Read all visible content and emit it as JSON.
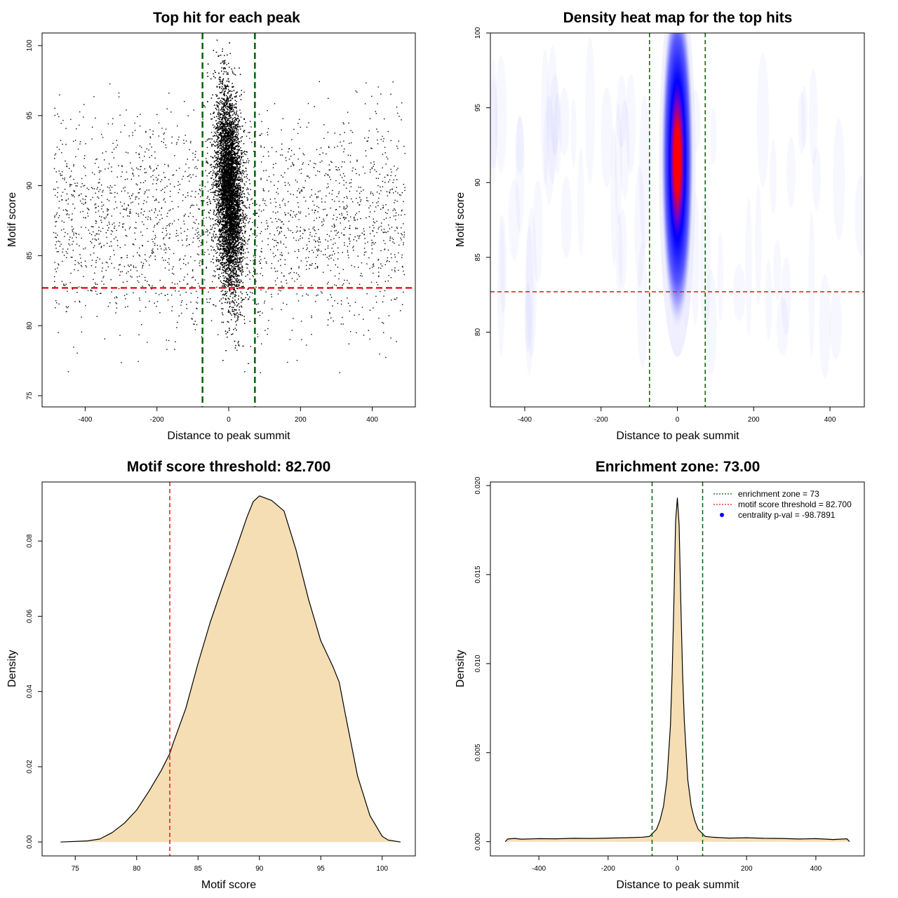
{
  "colors": {
    "zone_line": "#006400",
    "threshold_line": "#e8161b",
    "density_fill": "#f5deb3",
    "heat_low": "#ffffff",
    "heat_mid": "#0000ff",
    "heat_high": "#ff0000",
    "pval_marker": "#0000ff"
  },
  "chart_data": [
    {
      "type": "scatter",
      "title": "Top hit for each peak",
      "xlabel": "Distance to peak summit",
      "ylabel": "Motif score",
      "xlim": [
        -520,
        520
      ],
      "ylim": [
        74.2,
        100.9
      ],
      "xticks": [
        -400,
        -200,
        0,
        200,
        400
      ],
      "yticks": [
        75,
        80,
        85,
        90,
        95,
        100
      ],
      "xtick_labels": [
        "-400",
        "-200",
        "0",
        "200",
        "400"
      ],
      "ytick_labels": [
        "75",
        "80",
        "85",
        "90",
        "95",
        "100"
      ],
      "vlines": [
        -73,
        73
      ],
      "hline": 82.7,
      "points": {
        "background": {
          "count": 2400,
          "x_range": [
            -490,
            490
          ],
          "y_range": [
            76.5,
            97.5
          ],
          "y_center": 87.5
        },
        "central": {
          "count": 12000,
          "x_center": 0,
          "x_sd": 14,
          "y_center": 89.5,
          "y_sd": 3.6
        }
      }
    },
    {
      "type": "heatmap",
      "title": "Density heat map for the top hits",
      "xlabel": "Distance to peak summit",
      "ylabel": "Motif score",
      "xlim": [
        -490,
        490
      ],
      "ylim": [
        75,
        100
      ],
      "xticks": [
        -400,
        -200,
        0,
        200,
        400
      ],
      "yticks": [
        80,
        85,
        90,
        95,
        100
      ],
      "xtick_labels": [
        "-400",
        "-200",
        "0",
        "200",
        "400"
      ],
      "ytick_labels": [
        "80",
        "85",
        "90",
        "95",
        "100"
      ],
      "vlines": [
        -73,
        73
      ],
      "hline": 82.7,
      "hotspot": {
        "x": 0,
        "y": 91.5,
        "x_sd": 9,
        "y_sd": 4.2
      }
    },
    {
      "type": "area",
      "title": "Motif score threshold: 82.700",
      "xlabel": "Motif score",
      "ylabel": "Density",
      "xlim": [
        72.3,
        102.7
      ],
      "ylim": [
        -0.0037,
        0.0957
      ],
      "xticks": [
        75,
        80,
        85,
        90,
        95,
        100
      ],
      "yticks": [
        0.0,
        0.02,
        0.04,
        0.06,
        0.08
      ],
      "xtick_labels": [
        "75",
        "80",
        "85",
        "90",
        "95",
        "100"
      ],
      "ytick_labels": [
        "0.00",
        "0.02",
        "0.04",
        "0.06",
        "0.08"
      ],
      "vline": 82.7,
      "x": [
        73.8,
        76,
        77,
        78,
        79,
        80,
        81,
        82,
        82.7,
        83,
        84,
        85,
        86,
        87,
        88,
        89,
        89.5,
        90,
        91,
        92,
        93,
        94,
        95,
        96,
        96.5,
        97,
        98,
        99,
        100,
        100.5,
        101.5
      ],
      "y": [
        0.0,
        0.0003,
        0.0008,
        0.0025,
        0.005,
        0.0085,
        0.0135,
        0.019,
        0.0235,
        0.0265,
        0.0355,
        0.0475,
        0.0585,
        0.068,
        0.077,
        0.0865,
        0.0905,
        0.092,
        0.0908,
        0.088,
        0.0775,
        0.0645,
        0.0535,
        0.0465,
        0.0425,
        0.034,
        0.0175,
        0.007,
        0.0015,
        0.0005,
        0.0
      ]
    },
    {
      "type": "area",
      "title": "Enrichment zone: 73.00",
      "xlabel": "Distance to peak summit",
      "ylabel": "Density",
      "xlim": [
        -540,
        540
      ],
      "ylim": [
        -0.0008,
        0.0202
      ],
      "xticks": [
        -400,
        -200,
        0,
        200,
        400
      ],
      "yticks": [
        0.0,
        0.005,
        0.01,
        0.015,
        0.02
      ],
      "xtick_labels": [
        "-400",
        "-200",
        "0",
        "200",
        "400"
      ],
      "ytick_labels": [
        "0.000",
        "0.005",
        "0.010",
        "0.015",
        "0.020"
      ],
      "vlines": [
        -73,
        73
      ],
      "x": [
        -497,
        -490,
        -470,
        -450,
        -400,
        -350,
        -300,
        -250,
        -200,
        -150,
        -100,
        -80,
        -70,
        -60,
        -50,
        -40,
        -30,
        -20,
        -15,
        -10,
        -5,
        0,
        5,
        10,
        15,
        20,
        30,
        40,
        50,
        60,
        70,
        80,
        100,
        150,
        200,
        250,
        300,
        350,
        400,
        450,
        490,
        497
      ],
      "y": [
        0.0,
        0.00015,
        0.00018,
        0.00014,
        0.00017,
        0.00016,
        0.00019,
        0.00018,
        0.0002,
        0.00022,
        0.00025,
        0.0003,
        0.0005,
        0.0007,
        0.0012,
        0.002,
        0.0035,
        0.0065,
        0.0095,
        0.0135,
        0.018,
        0.0193,
        0.0178,
        0.0135,
        0.0095,
        0.0068,
        0.0035,
        0.002,
        0.0012,
        0.0007,
        0.0005,
        0.0003,
        0.00025,
        0.0002,
        0.00022,
        0.00019,
        0.00018,
        0.00015,
        0.00017,
        0.00012,
        0.00016,
        0.0
      ]
    }
  ],
  "legend": {
    "items": [
      {
        "label": "enrichment zone = 73",
        "style": "dotted-line",
        "color_key": "zone_line"
      },
      {
        "label": "motif score threshold = 82.700",
        "style": "dotted-line",
        "color_key": "threshold_line"
      },
      {
        "label": "centrality p-val = -98.7891",
        "style": "dot",
        "color_key": "pval_marker"
      }
    ]
  }
}
